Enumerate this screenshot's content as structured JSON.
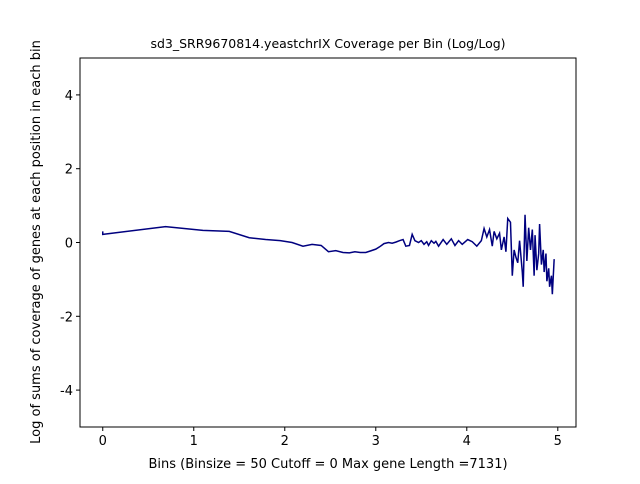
{
  "chart_data": {
    "type": "line",
    "title": "sd3_SRR9670814.yeastchrIX Coverage per Bin (Log/Log)",
    "xlabel": "Bins  (Binsize = 50 Cutoff = 0 Max gene Length =7131)",
    "ylabel": "Log of sums of coverage of genes at each position in each bin",
    "x": [
      0,
      0,
      0.69,
      1.1,
      1.39,
      1.61,
      1.79,
      1.95,
      2.08,
      2.2,
      2.3,
      2.4,
      2.48,
      2.56,
      2.64,
      2.71,
      2.77,
      2.83,
      2.89,
      2.94,
      3.0,
      3.04,
      3.09,
      3.14,
      3.18,
      3.22,
      3.26,
      3.3,
      3.33,
      3.37,
      3.4,
      3.43,
      3.47,
      3.5,
      3.53,
      3.56,
      3.58,
      3.61,
      3.64,
      3.66,
      3.69,
      3.74,
      3.78,
      3.83,
      3.87,
      3.91,
      3.95,
      4.01,
      4.06,
      4.11,
      4.16,
      4.19,
      4.22,
      4.25,
      4.28,
      4.3,
      4.33,
      4.36,
      4.38,
      4.41,
      4.43,
      4.45,
      4.48,
      4.5,
      4.52,
      4.54,
      4.56,
      4.58,
      4.61,
      4.62,
      4.64,
      4.66,
      4.68,
      4.7,
      4.72,
      4.74,
      4.75,
      4.77,
      4.79,
      4.8,
      4.82,
      4.84,
      4.85,
      4.87,
      4.88,
      4.9,
      4.91,
      4.93,
      4.94,
      4.96
    ],
    "series": [
      {
        "name": "coverage",
        "color": "#00007f",
        "values": [
          0.3,
          0.22,
          0.43,
          0.33,
          0.3,
          0.13,
          0.08,
          0.05,
          0,
          -0.1,
          -0.05,
          -0.08,
          -0.25,
          -0.22,
          -0.27,
          -0.28,
          -0.25,
          -0.27,
          -0.27,
          -0.23,
          -0.18,
          -0.12,
          -0.03,
          0,
          -0.02,
          0.01,
          0.05,
          0.08,
          -0.1,
          -0.08,
          0.22,
          0.05,
          0,
          0.05,
          -0.05,
          0.02,
          -0.08,
          0.05,
          -0.02,
          0.03,
          -0.1,
          0.08,
          -0.05,
          0.1,
          -0.08,
          0.05,
          -0.05,
          0.08,
          0.02,
          -0.1,
          0.05,
          0.38,
          0.15,
          0.35,
          -0.1,
          0.3,
          0.1,
          0.25,
          -0.2,
          0.15,
          -0.25,
          0.65,
          0.55,
          -0.9,
          -0.2,
          -0.4,
          -0.55,
          0.05,
          -0.8,
          -1.2,
          0.75,
          -0.5,
          0.4,
          -0.2,
          0.35,
          -0.9,
          0.2,
          -0.75,
          -0.3,
          0.5,
          -0.6,
          -0.2,
          -0.8,
          -0.3,
          -1.05,
          -0.7,
          -1.2,
          -0.9,
          -1.4,
          -0.45
        ]
      }
    ],
    "xlim": [
      -0.25,
      5.2
    ],
    "ylim": [
      -5,
      5
    ],
    "xticks": [
      0,
      1,
      2,
      3,
      4,
      5
    ],
    "yticks": [
      -4,
      -2,
      0,
      2,
      4
    ]
  }
}
